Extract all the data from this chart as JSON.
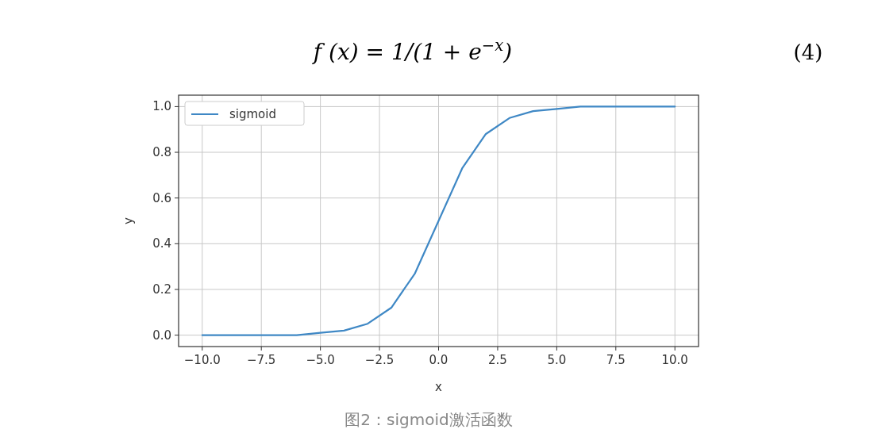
{
  "chart_data": {
    "type": "line",
    "title": "f (x) = 1/(1 + e$^{−x}$)",
    "annotations": [
      "(4)",
      "图2：sigmoid激活函数"
    ],
    "xlabel": "x",
    "ylabel": "y",
    "x": [
      -10,
      -9,
      -8,
      -7,
      -6,
      -5,
      -4,
      -3,
      -2,
      -1,
      0,
      1,
      2,
      3,
      4,
      5,
      6,
      7,
      8,
      9,
      10
    ],
    "series": [
      {
        "name": "sigmoid",
        "color": "#3f88c5",
        "values": [
          0.0,
          0.0,
          0.0,
          0.0,
          0.0,
          0.01,
          0.02,
          0.05,
          0.12,
          0.27,
          0.5,
          0.73,
          0.88,
          0.95,
          0.98,
          0.99,
          1.0,
          1.0,
          1.0,
          1.0,
          1.0
        ]
      }
    ],
    "xlim": [
      -11,
      11
    ],
    "ylim": [
      -0.05,
      1.05
    ],
    "xticks": [
      {
        "value": -10,
        "label": "−10.0"
      },
      {
        "value": -7.5,
        "label": "−7.5"
      },
      {
        "value": -5,
        "label": "−5.0"
      },
      {
        "value": -2.5,
        "label": "−2.5"
      },
      {
        "value": 0,
        "label": "0.0"
      },
      {
        "value": 2.5,
        "label": "2.5"
      },
      {
        "value": 5,
        "label": "5.0"
      },
      {
        "value": 7.5,
        "label": "7.5"
      },
      {
        "value": 10,
        "label": "10.0"
      }
    ],
    "yticks": [
      {
        "value": 0,
        "label": "0.0"
      },
      {
        "value": 0.2,
        "label": "0.2"
      },
      {
        "value": 0.4,
        "label": "0.4"
      },
      {
        "value": 0.6,
        "label": "0.6"
      },
      {
        "value": 0.8,
        "label": "0.8"
      },
      {
        "value": 1.0,
        "label": "1.0"
      }
    ],
    "grid": true,
    "legend": "top left"
  }
}
